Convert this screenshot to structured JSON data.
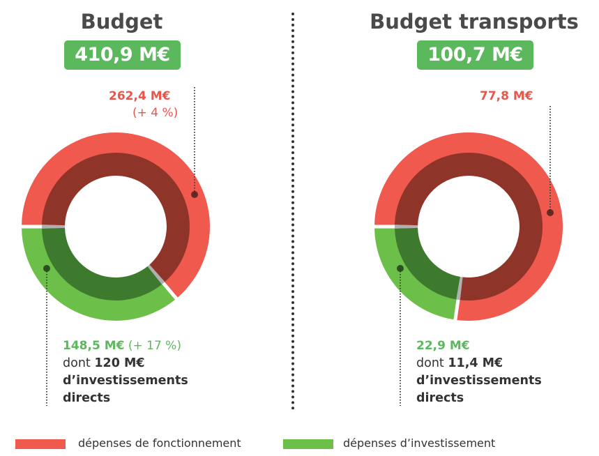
{
  "chart_data": [
    {
      "type": "pie",
      "title": "Budget",
      "total": "410,9 M€",
      "series": [
        {
          "category": "dépenses de fonctionnement",
          "value": 262.4,
          "label": "262,4 M€",
          "change": "(+ 4 %)"
        },
        {
          "category": "dépenses d'investissement",
          "value": 148.5,
          "label": "148,5 M€",
          "change": "(+ 17 %)",
          "detail_prefix": "dont",
          "detail_value": "120 M€",
          "detail_suffix": "d’investissements directs"
        }
      ]
    },
    {
      "type": "pie",
      "title": "Budget transports",
      "total": "100,7 M€",
      "series": [
        {
          "category": "dépenses de fonctionnement",
          "value": 77.8,
          "label": "77,8 M€"
        },
        {
          "category": "dépenses d'investissement",
          "value": 22.9,
          "label": "22,9 M€",
          "detail_prefix": "dont",
          "detail_value": "11,4 M€",
          "detail_suffix": "d’investissements directs"
        }
      ]
    }
  ],
  "left": {
    "title": "Budget",
    "total": "410,9 M€",
    "red_value": "262,4 M€",
    "red_change": "(+ 4 %)",
    "green_value": "148,5 M€",
    "green_change": "(+ 17 %)",
    "detail_prefix": "dont",
    "detail_value": "120 M€",
    "detail_line2": "d’investissements",
    "detail_line3": "directs"
  },
  "right": {
    "title": "Budget transports",
    "total": "100,7 M€",
    "red_value": "77,8 M€",
    "green_value": "22,9 M€",
    "detail_prefix": "dont",
    "detail_value": "11,4 M€",
    "detail_line2": "d’investissements",
    "detail_line3": "directs"
  },
  "legend": {
    "red_label": "dépenses de fonctionnement",
    "green_label": "dépenses d’investissement"
  },
  "colors": {
    "red": "#f0594d",
    "dark_red": "#8e3429",
    "green": "#6cc04a",
    "dark_green": "#3e7a2e",
    "badge_green": "#5cb85c",
    "connector_gray": "#b0b0b0"
  }
}
